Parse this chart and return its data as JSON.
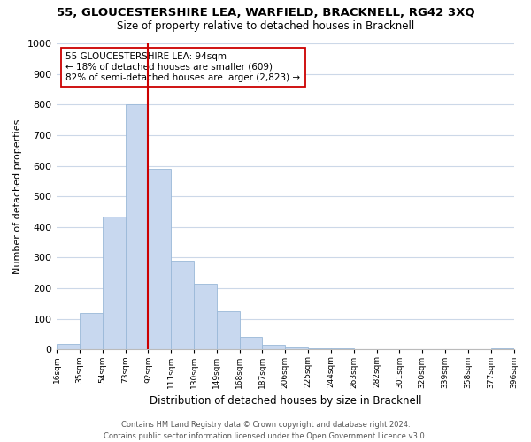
{
  "title": "55, GLOUCESTERSHIRE LEA, WARFIELD, BRACKNELL, RG42 3XQ",
  "subtitle": "Size of property relative to detached houses in Bracknell",
  "xlabel": "Distribution of detached houses by size in Bracknell",
  "ylabel": "Number of detached properties",
  "bin_labels": [
    "16sqm",
    "35sqm",
    "54sqm",
    "73sqm",
    "92sqm",
    "111sqm",
    "130sqm",
    "149sqm",
    "168sqm",
    "187sqm",
    "206sqm",
    "225sqm",
    "244sqm",
    "263sqm",
    "282sqm",
    "301sqm",
    "320sqm",
    "339sqm",
    "358sqm",
    "377sqm",
    "396sqm"
  ],
  "bar_heights": [
    18,
    120,
    435,
    800,
    590,
    290,
    215,
    125,
    40,
    15,
    8,
    5,
    3,
    2,
    1,
    1,
    1,
    1,
    0,
    5
  ],
  "bar_color": "#c8d8ef",
  "bar_edge_color": "#9ab8d8",
  "property_label": "55 GLOUCESTERSHIRE LEA: 94sqm",
  "annotation_line1": "← 18% of detached houses are smaller (609)",
  "annotation_line2": "82% of semi-detached houses are larger (2,823) →",
  "vline_color": "#cc0000",
  "vline_bin_index": 4,
  "ylim": [
    0,
    1000
  ],
  "yticks": [
    0,
    100,
    200,
    300,
    400,
    500,
    600,
    700,
    800,
    900,
    1000
  ],
  "footer_line1": "Contains HM Land Registry data © Crown copyright and database right 2024.",
  "footer_line2": "Contains public sector information licensed under the Open Government Licence v3.0.",
  "bg_color": "#ffffff",
  "grid_color": "#ccd8e8",
  "annotation_box_color": "#ffffff",
  "annotation_box_edge": "#cc0000"
}
